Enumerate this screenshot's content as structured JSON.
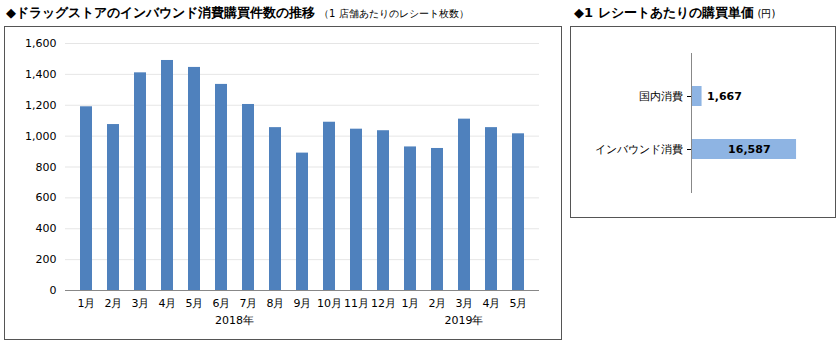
{
  "chart_data": [
    {
      "type": "bar",
      "title": "◆ドラッグストアのインバウンド消費購買件数の推移",
      "subtitle": "（1 店舗あたりのレシート枚数）",
      "categories": [
        "1月",
        "2月",
        "3月",
        "4月",
        "5月",
        "6月",
        "7月",
        "8月",
        "9月",
        "10月",
        "11月",
        "12月",
        "1月",
        "2月",
        "3月",
        "4月",
        "5月"
      ],
      "years": [
        "2018年",
        "2018年",
        "2018年",
        "2018年",
        "2018年",
        "2018年",
        "2018年",
        "2018年",
        "2018年",
        "2018年",
        "2018年",
        "2018年",
        "2019年",
        "2019年",
        "2019年",
        "2019年",
        "2019年"
      ],
      "values": [
        1190,
        1075,
        1410,
        1490,
        1445,
        1335,
        1205,
        1055,
        890,
        1090,
        1045,
        1035,
        930,
        920,
        1110,
        1055,
        1015
      ],
      "color": "#4F81BD",
      "ylim": [
        0,
        1600
      ],
      "yticks": [
        0,
        200,
        400,
        600,
        800,
        {
          "value": 1000,
          "label": "1,000"
        },
        {
          "value": 1200,
          "label": "1,200"
        },
        {
          "value": 1400,
          "label": "1,400"
        },
        {
          "value": 1600,
          "label": "1,600"
        }
      ],
      "grid": true
    },
    {
      "type": "bar",
      "orientation": "horizontal",
      "title": "◆1 レシートあたりの購買単価",
      "subtitle": "(円)",
      "categories": [
        "国内消費",
        "インバウンド消費"
      ],
      "values": [
        1667,
        16587
      ],
      "value_labels": [
        "1,667",
        "16,587"
      ],
      "color": "#8EB4E3",
      "xlim": [
        0,
        18000
      ],
      "data_labels": true,
      "tick_labels": "y"
    }
  ]
}
